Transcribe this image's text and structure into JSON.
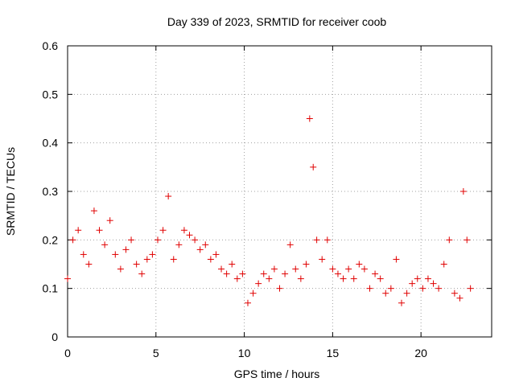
{
  "chart_data": {
    "type": "scatter",
    "title": "Day 339 of 2023, SRMTID for receiver coob",
    "xlabel": "GPS time / hours",
    "ylabel": "SRMTID / TECUs",
    "xlim": [
      0,
      24
    ],
    "ylim": [
      0,
      0.6
    ],
    "xticks": [
      0,
      5,
      10,
      15,
      20
    ],
    "xtick_labels": [
      "0",
      "5",
      "10",
      "15",
      "20"
    ],
    "yticks": [
      0,
      0.1,
      0.2,
      0.3,
      0.4,
      0.5,
      0.6
    ],
    "ytick_labels": [
      "0",
      "0.1",
      "0.2",
      "0.3",
      "0.4",
      "0.5",
      "0.6"
    ],
    "grid": true,
    "marker": "+",
    "marker_color": "#e00000",
    "series": [
      {
        "name": "SRMTID",
        "x": [
          0.0,
          0.3,
          0.6,
          0.9,
          1.2,
          1.5,
          1.8,
          2.1,
          2.4,
          2.7,
          3.0,
          3.3,
          3.6,
          3.9,
          4.2,
          4.5,
          4.8,
          5.1,
          5.4,
          5.7,
          6.0,
          6.3,
          6.6,
          6.9,
          7.2,
          7.5,
          7.8,
          8.1,
          8.4,
          8.7,
          9.0,
          9.3,
          9.6,
          9.9,
          10.2,
          10.5,
          10.8,
          11.1,
          11.4,
          11.7,
          12.0,
          12.3,
          12.6,
          12.9,
          13.2,
          13.5,
          13.7,
          13.9,
          14.1,
          14.4,
          14.7,
          15.0,
          15.3,
          15.6,
          15.9,
          16.2,
          16.5,
          16.8,
          17.1,
          17.4,
          17.7,
          18.0,
          18.3,
          18.6,
          18.9,
          19.2,
          19.5,
          19.8,
          20.1,
          20.4,
          20.7,
          21.0,
          21.3,
          21.6,
          21.9,
          22.2,
          22.4,
          22.6,
          22.8
        ],
        "y": [
          0.12,
          0.2,
          0.22,
          0.17,
          0.15,
          0.26,
          0.22,
          0.19,
          0.24,
          0.17,
          0.14,
          0.18,
          0.2,
          0.15,
          0.13,
          0.16,
          0.17,
          0.2,
          0.22,
          0.29,
          0.16,
          0.19,
          0.22,
          0.21,
          0.2,
          0.18,
          0.19,
          0.16,
          0.17,
          0.14,
          0.13,
          0.15,
          0.12,
          0.13,
          0.07,
          0.09,
          0.11,
          0.13,
          0.12,
          0.14,
          0.1,
          0.13,
          0.19,
          0.14,
          0.12,
          0.15,
          0.45,
          0.35,
          0.2,
          0.16,
          0.2,
          0.14,
          0.13,
          0.12,
          0.14,
          0.12,
          0.15,
          0.14,
          0.1,
          0.13,
          0.12,
          0.09,
          0.1,
          0.16,
          0.07,
          0.09,
          0.11,
          0.12,
          0.1,
          0.12,
          0.11,
          0.1,
          0.15,
          0.2,
          0.09,
          0.08,
          0.3,
          0.2,
          0.1
        ]
      }
    ]
  }
}
